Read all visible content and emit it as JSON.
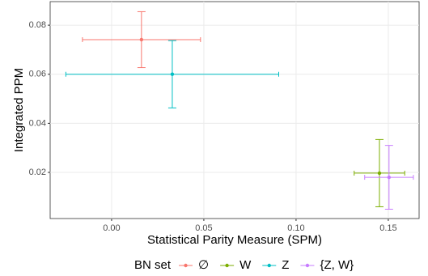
{
  "chart_data": {
    "type": "scatter",
    "xlabel": "Statistical Parity Measure (SPM)",
    "ylabel": "Integrated PPM",
    "legend_title": "BN set",
    "legend": "bottom",
    "grid": true,
    "xlim": [
      -0.0333,
      0.1667
    ],
    "ylim": [
      0.0012,
      0.0896
    ],
    "xticks": [
      {
        "value": 0,
        "label": "0.00"
      },
      0.05,
      {
        "value": 0.1,
        "label": "0.10"
      },
      0.15
    ],
    "yticks": [
      0.02,
      0.04,
      0.06,
      0.08
    ],
    "series": [
      {
        "name": "∅",
        "color": "#F8766D",
        "x": [
          0.0162
        ],
        "values": [
          0.0741
        ],
        "xerr": [
          0.032
        ],
        "yerr": [
          0.0114
        ]
      },
      {
        "name": "W",
        "color": "#7CAE00",
        "x": [
          0.1452
        ],
        "values": [
          0.0197
        ],
        "xerr": [
          0.0137
        ],
        "yerr": [
          0.0137
        ]
      },
      {
        "name": "Z",
        "color": "#00BFC4",
        "x": [
          0.0329
        ],
        "values": [
          0.06
        ],
        "xerr": [
          0.0577
        ],
        "yerr": [
          0.0137
        ]
      },
      {
        "name": "{Z, W}",
        "color": "#C77CFF",
        "x": [
          0.1504
        ],
        "values": [
          0.018
        ],
        "xerr": [
          0.0132
        ],
        "yerr": [
          0.013
        ]
      }
    ]
  }
}
